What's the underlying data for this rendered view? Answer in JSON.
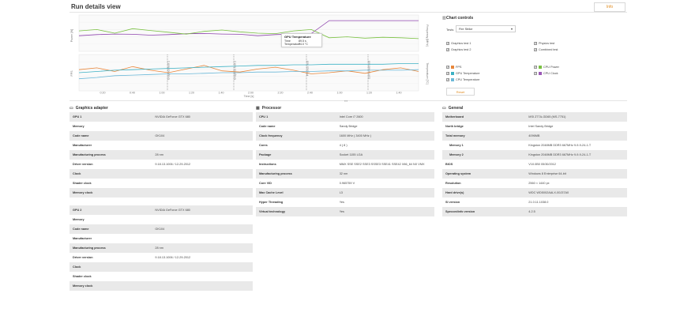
{
  "header": {
    "title": "Run details view",
    "info_label": "Info"
  },
  "colors": {
    "fps": "#e8863a",
    "gpu_temp": "#3cb1c4",
    "cpu_temp": "#6bb8d8",
    "power": "#9b59b6",
    "gpu_clock": "#8e44ad",
    "frequency": "#7ac142",
    "accent": "#e08a1e"
  },
  "chart_data": {
    "type": "line",
    "xlabel": "Time [s]",
    "x_ticks": [
      "0:20",
      "0:40",
      "1:00",
      "1:20",
      "1:40",
      "2:00",
      "2:20",
      "2:40",
      "1:00",
      "1:20",
      "1:40"
    ],
    "top_left_ylabel": "Power [W]",
    "top_right_ylabel": "Frequency [MHz]",
    "bottom_left_ylabel": "FPS",
    "bottom_right_ylabel": "Temperature [°C]",
    "markers": [
      "Graphics test 1",
      "Graphics test 2",
      "Physics test",
      "Combined test"
    ],
    "series": [
      {
        "name": "FPS",
        "values": [
          35,
          38,
          32,
          40,
          34,
          30,
          36,
          42,
          33,
          31,
          36,
          39,
          34,
          28,
          30,
          33,
          29,
          35,
          38,
          32
        ]
      },
      {
        "name": "GPU Temperature",
        "values": [
          60,
          62,
          64,
          65,
          66,
          67,
          68,
          69,
          70,
          71,
          72,
          72,
          73,
          73,
          74,
          74,
          74,
          74,
          75,
          75
        ]
      },
      {
        "name": "CPU Temperature",
        "values": [
          50,
          52,
          55,
          56,
          57,
          58,
          58,
          59,
          60,
          60,
          61,
          61,
          62,
          62,
          63,
          63,
          64,
          64,
          64,
          65
        ]
      },
      {
        "name": "GPU Clock",
        "values": [
          880,
          900,
          910,
          905,
          890,
          900,
          915,
          920,
          910,
          905,
          880,
          900,
          910,
          920,
          1150,
          1150,
          1150,
          1150,
          1150,
          1150
        ]
      },
      {
        "name": "CPU Power",
        "values": [
          85,
          88,
          80,
          90,
          86,
          82,
          78,
          84,
          87,
          83,
          80,
          79,
          85,
          88,
          70,
          72,
          69,
          71,
          70,
          68
        ]
      }
    ]
  },
  "tooltip": {
    "title": "GPU Temperature",
    "rows": [
      {
        "k": "Time",
        "v": "89.5 s"
      },
      {
        "k": "Temperature",
        "v": "74.0 °C"
      }
    ]
  },
  "controls": {
    "title": "Chart controls",
    "tests_label": "Tests",
    "tests_value": "Fire Strike",
    "test_checks": [
      "Graphics test 1",
      "Physics test",
      "Graphics test 2",
      "Combined test"
    ],
    "series_checks": [
      "FPS",
      "CPU Power",
      "GPU Temperature",
      "CPU Clock",
      "CPU Temperature"
    ],
    "reset_label": "Reset"
  },
  "graphics": {
    "title": "Graphics adapter",
    "gpu1": [
      {
        "k": "GPU 1",
        "v": "NVIDIA GeForce GTX 680"
      },
      {
        "k": "Memory",
        "v": ""
      },
      {
        "k": "Code name",
        "v": "GK104"
      },
      {
        "k": "Manufacturer",
        "v": ""
      },
      {
        "k": "Manufacturing process",
        "v": "28 nm"
      },
      {
        "k": "Driver version",
        "v": "9.18.13.1006 / 12-29-2012"
      },
      {
        "k": "Clock",
        "v": ""
      },
      {
        "k": "Shader clock",
        "v": ""
      },
      {
        "k": "Memory clock",
        "v": ""
      }
    ],
    "gpu2": [
      {
        "k": "GPU 2",
        "v": "NVIDIA GeForce GTX 680"
      },
      {
        "k": "Memory",
        "v": ""
      },
      {
        "k": "Code name",
        "v": "GK104"
      },
      {
        "k": "Manufacturer",
        "v": ""
      },
      {
        "k": "Manufacturing process",
        "v": "28 nm"
      },
      {
        "k": "Driver version",
        "v": "9.18.13.1006 / 12-29-2012"
      },
      {
        "k": "Clock",
        "v": ""
      },
      {
        "k": "Shader clock",
        "v": ""
      },
      {
        "k": "Memory clock",
        "v": ""
      }
    ]
  },
  "processor": {
    "title": "Processor",
    "rows": [
      {
        "k": "CPU 1",
        "v": "Intel Core i7 2600"
      },
      {
        "k": "Code name",
        "v": "Sandy Bridge"
      },
      {
        "k": "Clock frequency",
        "v": "1600 MHz ( 3400 MHz )"
      },
      {
        "k": "Cores",
        "v": "4 ( 8 )"
      },
      {
        "k": "Package",
        "v": "Socket 1155 LGA"
      },
      {
        "k": "Instructions",
        "v": "MMX SSE SSE2 SSE3 SSSE3 SSE41 SSE42 X86_64 NX VMX"
      },
      {
        "k": "Manufacturing process",
        "v": "32 nm"
      },
      {
        "k": "Core VID",
        "v": "0.965759 V"
      },
      {
        "k": "Max Cache Level",
        "v": "L3"
      },
      {
        "k": "Hyper Threading",
        "v": "Yes"
      },
      {
        "k": "Virtual technology",
        "v": "Yes"
      }
    ]
  },
  "general": {
    "title": "General",
    "rows": [
      {
        "k": "Motherboard",
        "v": "MSI Z77A-GD65 (MS-7751)",
        "sub": false
      },
      {
        "k": "North bridge",
        "v": "Intel Sandy Bridge",
        "sub": false
      },
      {
        "k": "Total memory",
        "v": "4096MB",
        "sub": false
      },
      {
        "k": "Memory 1",
        "v": "Kingston 2048MB  DDR3 667MHz 9-9-9-24-1-T",
        "sub": true
      },
      {
        "k": "Memory 2",
        "v": "Kingston 2048MB  DDR3 667MHz 9-9-9-24-1-T",
        "sub": true
      },
      {
        "k": "BIOS",
        "v": "V10.0B0 05/30/2012",
        "sub": false
      },
      {
        "k": "Operating system",
        "v": "Windows 8 Enterprise 64-bit",
        "sub": false
      },
      {
        "k": "Resolution",
        "v": "2560 × 1440 px",
        "sub": false
      },
      {
        "k": "Hard drive(s)",
        "v": "WDC WD5002AALX-00J37A0",
        "sub": false
      },
      {
        "k": "SI version",
        "v": "21.0.11.1038.0",
        "sub": false
      },
      {
        "k": "Speccedinfo version",
        "v": "4.2.5",
        "sub": false
      }
    ]
  }
}
